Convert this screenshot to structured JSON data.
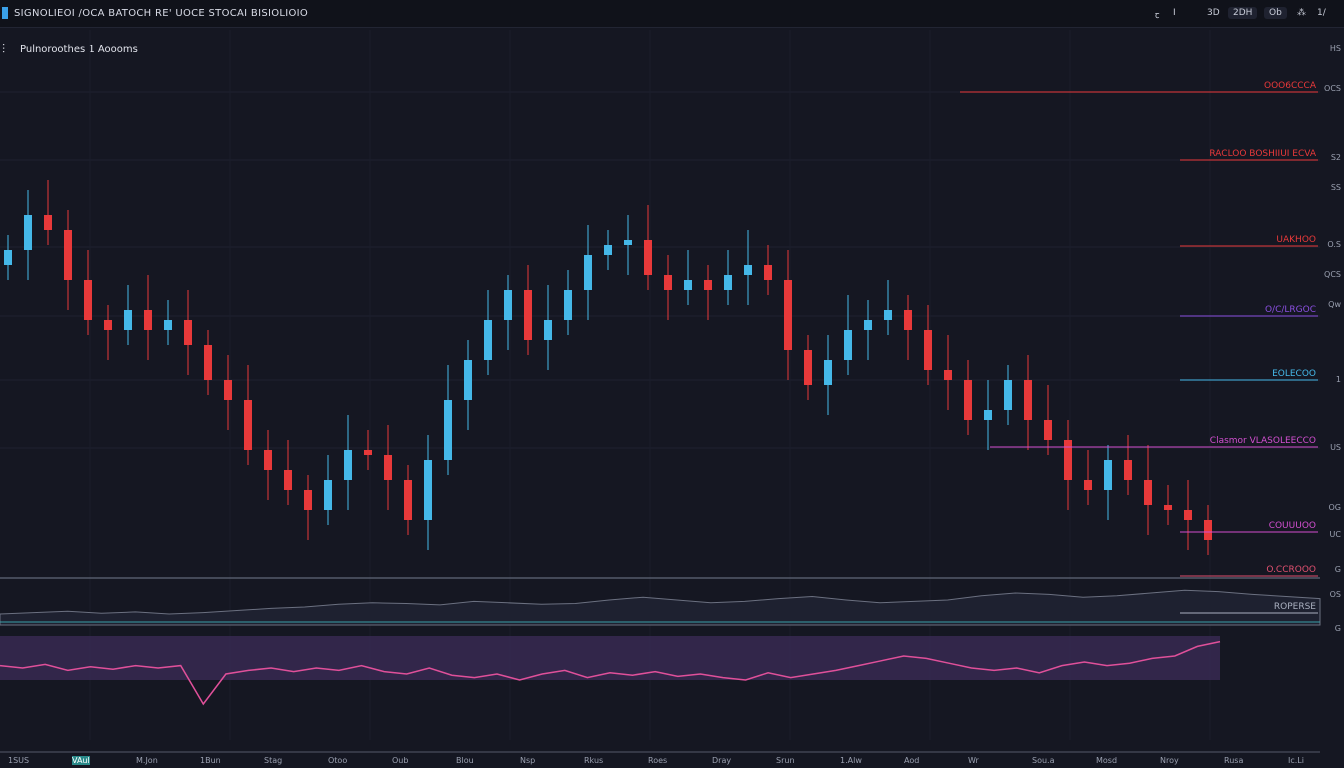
{
  "header": {
    "title": "SIGNOLIEOI /OCA BATOCH RE' UOCE STOCAI BISIOLIOIO",
    "toolbar": [
      "ꞇ",
      "I",
      "3D",
      "2DH",
      "Ob",
      "⁂",
      "1/"
    ]
  },
  "symbol_label": "Pulnoroothes 1 Aoooms",
  "colors": {
    "background": "#151722",
    "up": "#45b8e8",
    "down": "#e8393a",
    "oscillator": "#e0509a",
    "oscillator_fill": "#3a2a55",
    "volume_line": "#6b7080"
  },
  "chart_data": {
    "type": "candlestick",
    "title": "",
    "xlabel": "",
    "ylabel": "",
    "ylim": [
      0,
      120
    ],
    "grid": true,
    "closes": [
      70,
      77,
      74,
      64,
      56,
      54,
      58,
      54,
      56,
      51,
      44,
      40,
      30,
      26,
      22,
      18,
      24,
      30,
      29,
      24,
      16,
      28,
      40,
      48,
      56,
      62,
      52,
      56,
      62,
      69,
      71,
      72,
      65,
      62,
      64,
      62,
      65,
      67,
      64,
      50,
      43,
      48,
      54,
      56,
      58,
      54,
      46,
      44,
      36,
      38,
      44,
      36,
      32,
      24,
      22,
      28,
      24,
      19,
      18,
      16,
      12
    ],
    "oscillator": [
      62,
      60,
      63,
      58,
      61,
      59,
      62,
      60,
      62,
      30,
      55,
      58,
      60,
      57,
      60,
      58,
      62,
      57,
      55,
      60,
      54,
      52,
      55,
      50,
      55,
      58,
      52,
      56,
      54,
      57,
      53,
      55,
      52,
      50,
      56,
      52,
      55,
      58,
      62,
      66,
      70,
      68,
      64,
      60,
      58,
      60,
      56,
      62,
      65,
      62,
      64,
      68,
      70,
      78,
      82
    ],
    "volume": [
      20,
      22,
      24,
      21,
      23,
      20,
      22,
      25,
      28,
      30,
      34,
      36,
      35,
      33,
      38,
      36,
      34,
      35,
      40,
      44,
      40,
      36,
      38,
      42,
      45,
      40,
      36,
      38,
      40,
      46,
      50,
      48,
      44,
      46,
      50,
      54,
      52,
      48,
      45,
      42
    ]
  },
  "levels": [
    {
      "label": "OOO6CCCA",
      "color": "#e8393a"
    },
    {
      "label": "RACLOO BOSHIIUI ECVA",
      "color": "#e8393a"
    },
    {
      "label": "UAKHOO",
      "color": "#e8393a"
    },
    {
      "label": "O/C/LRGOC",
      "color": "#8a4fe0"
    },
    {
      "label": "EOLECOO",
      "color": "#45b8e8"
    },
    {
      "label": "Clasmor VLASOLEECCO",
      "color": "#d24fd0"
    },
    {
      "label": "COUUUOO",
      "color": "#d24fd0"
    },
    {
      "label": "O.CCROOO",
      "color": "#e05070"
    },
    {
      "label": "ROPERSE",
      "color": "#aab0c0"
    }
  ],
  "price_axis": [
    "HS",
    "OCS",
    "S2",
    "SS",
    "O.S",
    "QCS",
    "Qw",
    "1",
    "US",
    "OG",
    "UC",
    "G",
    "OS",
    "G"
  ],
  "time_axis": [
    "1SUS",
    "VAul",
    "M.Jon",
    "1Bun",
    "Stag",
    "Otoo",
    "Oub",
    "Blou",
    "Nsp",
    "Rkus",
    "Roes",
    "Dray",
    "Srun",
    "1.Alw",
    "Aod",
    "Wr",
    "Sou.a",
    "Mosd",
    "Nroy",
    "Rusa",
    "Ic.Li"
  ]
}
